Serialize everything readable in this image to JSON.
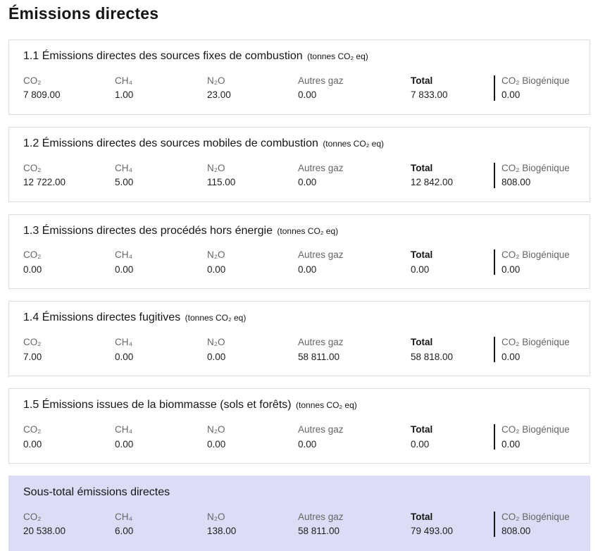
{
  "page": {
    "title": "Émissions directes"
  },
  "unit_suffix": "(tonnes CO₂ eq)",
  "columns": {
    "co2": "CO₂",
    "ch4": "CH₄",
    "n2o": "N₂O",
    "autres": "Autres gaz",
    "total": "Total",
    "bio": "CO₂ Biogénique"
  },
  "sections": [
    {
      "title": "1.1 Émissions directes des sources fixes de combustion",
      "values": {
        "co2": "7 809.00",
        "ch4": "1.00",
        "n2o": "23.00",
        "autres": "0.00",
        "total": "7 833.00",
        "bio": "0.00"
      }
    },
    {
      "title": "1.2 Émissions directes des sources mobiles de combustion",
      "values": {
        "co2": "12 722.00",
        "ch4": "5.00",
        "n2o": "115.00",
        "autres": "0.00",
        "total": "12 842.00",
        "bio": "808.00"
      }
    },
    {
      "title": "1.3 Émissions directes des procédés hors énergie",
      "values": {
        "co2": "0.00",
        "ch4": "0.00",
        "n2o": "0.00",
        "autres": "0.00",
        "total": "0.00",
        "bio": "0.00"
      }
    },
    {
      "title": "1.4 Émissions directes fugitives",
      "values": {
        "co2": "7.00",
        "ch4": "0.00",
        "n2o": "0.00",
        "autres": "58 811.00",
        "total": "58 818.00",
        "bio": "0.00"
      }
    },
    {
      "title": "1.5 Émissions issues de la biommasse (sols et forêts)",
      "values": {
        "co2": "0.00",
        "ch4": "0.00",
        "n2o": "0.00",
        "autres": "0.00",
        "total": "0.00",
        "bio": "0.00"
      }
    }
  ],
  "subtotal": {
    "title": "Sous-total émissions directes",
    "values": {
      "co2": "20 538.00",
      "ch4": "6.00",
      "n2o": "138.00",
      "autres": "58 811.00",
      "total": "79 493.00",
      "bio": "808.00"
    }
  },
  "colors": {
    "subtotal_background": "#dcdcf7",
    "card_border": "#dddddd",
    "label_text": "#666666",
    "value_text": "#1e1e1e",
    "separator": "#161616"
  }
}
